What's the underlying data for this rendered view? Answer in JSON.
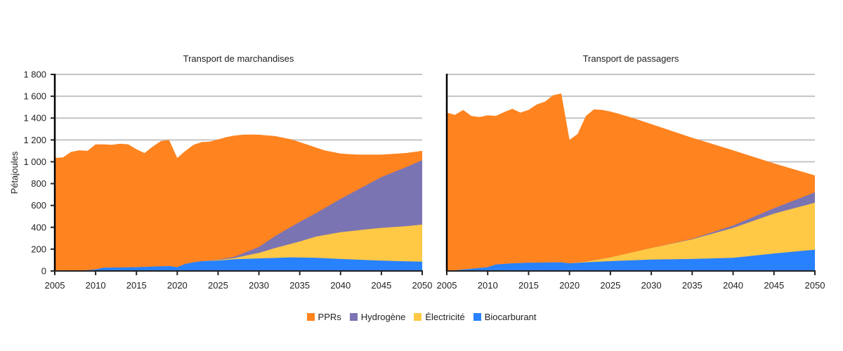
{
  "chart_data": [
    {
      "type": "area",
      "stacked": true,
      "title": "Transport de marchandises",
      "ylabel": "Pétajoules",
      "xlabel": "",
      "xlim": [
        2005,
        2050
      ],
      "ylim": [
        0,
        1800
      ],
      "yticks": [
        "0",
        "200",
        "400",
        "600",
        "800",
        "1 000",
        "1 200",
        "1 400",
        "1 600",
        "1 800"
      ],
      "xticks": [
        "2005",
        "2010",
        "2015",
        "2020",
        "2025",
        "2030",
        "2035",
        "2040",
        "2045",
        "2050"
      ],
      "grid": true,
      "stack_tops": {
        "Biocarburant": [
          [
            2005,
            0
          ],
          [
            2008,
            5
          ],
          [
            2009,
            8
          ],
          [
            2010,
            15
          ],
          [
            2011,
            30
          ],
          [
            2013,
            32
          ],
          [
            2015,
            35
          ],
          [
            2017,
            40
          ],
          [
            2019,
            45
          ],
          [
            2020,
            35
          ],
          [
            2021,
            65
          ],
          [
            2022,
            80
          ],
          [
            2023,
            90
          ],
          [
            2025,
            95
          ],
          [
            2027,
            108
          ],
          [
            2030,
            115
          ],
          [
            2034,
            125
          ],
          [
            2037,
            120
          ],
          [
            2040,
            110
          ],
          [
            2045,
            95
          ],
          [
            2048,
            88
          ],
          [
            2050,
            85
          ]
        ],
        "Électricité": [
          [
            2005,
            0
          ],
          [
            2008,
            5
          ],
          [
            2009,
            8
          ],
          [
            2010,
            15
          ],
          [
            2011,
            30
          ],
          [
            2013,
            32
          ],
          [
            2015,
            35
          ],
          [
            2017,
            40
          ],
          [
            2019,
            45
          ],
          [
            2020,
            35
          ],
          [
            2021,
            65
          ],
          [
            2022,
            80
          ],
          [
            2023,
            90
          ],
          [
            2025,
            100
          ],
          [
            2027,
            118
          ],
          [
            2028,
            135
          ],
          [
            2030,
            165
          ],
          [
            2032,
            210
          ],
          [
            2035,
            270
          ],
          [
            2037,
            315
          ],
          [
            2040,
            355
          ],
          [
            2043,
            380
          ],
          [
            2045,
            395
          ],
          [
            2048,
            410
          ],
          [
            2050,
            425
          ]
        ],
        "Hydrogène": [
          [
            2005,
            0
          ],
          [
            2008,
            5
          ],
          [
            2009,
            8
          ],
          [
            2010,
            15
          ],
          [
            2011,
            30
          ],
          [
            2013,
            32
          ],
          [
            2015,
            35
          ],
          [
            2017,
            40
          ],
          [
            2019,
            45
          ],
          [
            2020,
            35
          ],
          [
            2021,
            65
          ],
          [
            2022,
            80
          ],
          [
            2023,
            90
          ],
          [
            2025,
            105
          ],
          [
            2027,
            130
          ],
          [
            2028,
            160
          ],
          [
            2030,
            220
          ],
          [
            2032,
            320
          ],
          [
            2035,
            450
          ],
          [
            2037,
            530
          ],
          [
            2040,
            660
          ],
          [
            2043,
            780
          ],
          [
            2045,
            860
          ],
          [
            2048,
            950
          ],
          [
            2050,
            1015
          ]
        ],
        "PPRs": [
          [
            2005,
            1035
          ],
          [
            2006,
            1040
          ],
          [
            2007,
            1090
          ],
          [
            2008,
            1105
          ],
          [
            2009,
            1100
          ],
          [
            2010,
            1160
          ],
          [
            2011,
            1160
          ],
          [
            2012,
            1155
          ],
          [
            2013,
            1165
          ],
          [
            2014,
            1160
          ],
          [
            2015,
            1115
          ],
          [
            2016,
            1080
          ],
          [
            2017,
            1140
          ],
          [
            2018,
            1190
          ],
          [
            2019,
            1200
          ],
          [
            2020,
            1035
          ],
          [
            2021,
            1100
          ],
          [
            2022,
            1155
          ],
          [
            2023,
            1180
          ],
          [
            2024,
            1185
          ],
          [
            2025,
            1205
          ],
          [
            2026,
            1225
          ],
          [
            2027,
            1240
          ],
          [
            2028,
            1248
          ],
          [
            2029,
            1250
          ],
          [
            2030,
            1248
          ],
          [
            2032,
            1235
          ],
          [
            2034,
            1205
          ],
          [
            2036,
            1155
          ],
          [
            2038,
            1105
          ],
          [
            2040,
            1075
          ],
          [
            2042,
            1065
          ],
          [
            2045,
            1065
          ],
          [
            2048,
            1080
          ],
          [
            2050,
            1100
          ]
        ]
      }
    },
    {
      "type": "area",
      "stacked": true,
      "title": "Transport de passagers",
      "ylabel": "",
      "xlabel": "",
      "xlim": [
        2005,
        2050
      ],
      "ylim": [
        0,
        1800
      ],
      "xticks": [
        "2005",
        "2010",
        "2015",
        "2020",
        "2025",
        "2030",
        "2035",
        "2040",
        "2045",
        "2050"
      ],
      "grid": true,
      "stack_tops": {
        "Biocarburant": [
          [
            2005,
            0
          ],
          [
            2008,
            20
          ],
          [
            2010,
            35
          ],
          [
            2011,
            60
          ],
          [
            2013,
            70
          ],
          [
            2015,
            75
          ],
          [
            2019,
            80
          ],
          [
            2020,
            70
          ],
          [
            2022,
            80
          ],
          [
            2025,
            90
          ],
          [
            2030,
            105
          ],
          [
            2035,
            110
          ],
          [
            2040,
            120
          ],
          [
            2045,
            160
          ],
          [
            2050,
            195
          ]
        ],
        "Électricité": [
          [
            2005,
            0
          ],
          [
            2008,
            20
          ],
          [
            2010,
            35
          ],
          [
            2011,
            60
          ],
          [
            2013,
            70
          ],
          [
            2015,
            75
          ],
          [
            2019,
            80
          ],
          [
            2020,
            70
          ],
          [
            2022,
            85
          ],
          [
            2025,
            125
          ],
          [
            2030,
            210
          ],
          [
            2035,
            290
          ],
          [
            2040,
            395
          ],
          [
            2045,
            525
          ],
          [
            2050,
            625
          ]
        ],
        "Hydrogène": [
          [
            2005,
            0
          ],
          [
            2008,
            20
          ],
          [
            2010,
            35
          ],
          [
            2011,
            60
          ],
          [
            2013,
            70
          ],
          [
            2015,
            75
          ],
          [
            2019,
            80
          ],
          [
            2020,
            70
          ],
          [
            2022,
            85
          ],
          [
            2025,
            125
          ],
          [
            2030,
            210
          ],
          [
            2035,
            295
          ],
          [
            2040,
            415
          ],
          [
            2045,
            575
          ],
          [
            2050,
            720
          ]
        ],
        "PPRs": [
          [
            2005,
            1450
          ],
          [
            2006,
            1430
          ],
          [
            2007,
            1475
          ],
          [
            2008,
            1420
          ],
          [
            2009,
            1410
          ],
          [
            2010,
            1425
          ],
          [
            2011,
            1420
          ],
          [
            2012,
            1455
          ],
          [
            2013,
            1485
          ],
          [
            2014,
            1450
          ],
          [
            2015,
            1475
          ],
          [
            2016,
            1525
          ],
          [
            2017,
            1550
          ],
          [
            2018,
            1610
          ],
          [
            2019,
            1625
          ],
          [
            2020,
            1200
          ],
          [
            2021,
            1255
          ],
          [
            2022,
            1420
          ],
          [
            2023,
            1480
          ],
          [
            2024,
            1475
          ],
          [
            2025,
            1460
          ],
          [
            2026,
            1440
          ],
          [
            2028,
            1395
          ],
          [
            2030,
            1345
          ],
          [
            2035,
            1220
          ],
          [
            2040,
            1105
          ],
          [
            2045,
            985
          ],
          [
            2050,
            875
          ]
        ]
      }
    }
  ],
  "legend": [
    {
      "label": "PPRs",
      "color": "#FF831F"
    },
    {
      "label": "Hydrogène",
      "color": "#7B74B3"
    },
    {
      "label": "Électricité",
      "color": "#FFC845"
    },
    {
      "label": "Biocarburant",
      "color": "#2881FF"
    }
  ]
}
